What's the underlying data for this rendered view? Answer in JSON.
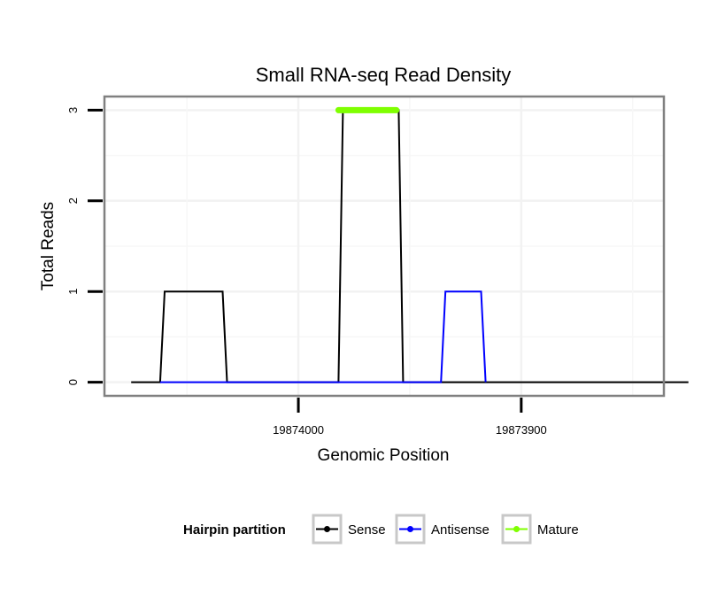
{
  "chart_data": {
    "type": "line",
    "title": "Small RNA-seq Read Density",
    "xlabel": "Genomic Position",
    "ylabel": "Total Reads",
    "x_reversed": true,
    "xlim": [
      19874087,
      19873836
    ],
    "ylim": [
      -0.15,
      3.15
    ],
    "x_ticks": [
      19874000,
      19873900
    ],
    "x_tick_labels": [
      "19874000",
      "19873900"
    ],
    "y_ticks": [
      0,
      1,
      2,
      3
    ],
    "y_tick_labels": [
      "0",
      "1",
      "2",
      "3"
    ],
    "grid": true,
    "legend": {
      "title": "Hairpin partition",
      "position": "bottom",
      "entries": [
        {
          "label": "Sense",
          "color": "#000000"
        },
        {
          "label": "Antisense",
          "color": "#0000ff"
        },
        {
          "label": "Mature",
          "color": "#7fff00"
        }
      ]
    },
    "series": [
      {
        "name": "Sense",
        "color": "#000000",
        "x": [
          19874075,
          19874062,
          19874060,
          19874034,
          19874032,
          19873982,
          19873980,
          19873955,
          19873953,
          19873825
        ],
        "y": [
          0,
          0,
          1,
          1,
          0,
          0,
          3,
          3,
          0,
          0
        ]
      },
      {
        "name": "Antisense",
        "color": "#0000ff",
        "x": [
          19874062,
          19874032,
          19873955,
          19873936,
          19873934,
          19873918,
          19873916
        ],
        "y": [
          0,
          0,
          0,
          0,
          1,
          1,
          0
        ]
      },
      {
        "name": "Mature",
        "color": "#7fff00",
        "x": [
          19873982,
          19873956
        ],
        "y": [
          3,
          3
        ]
      }
    ]
  }
}
